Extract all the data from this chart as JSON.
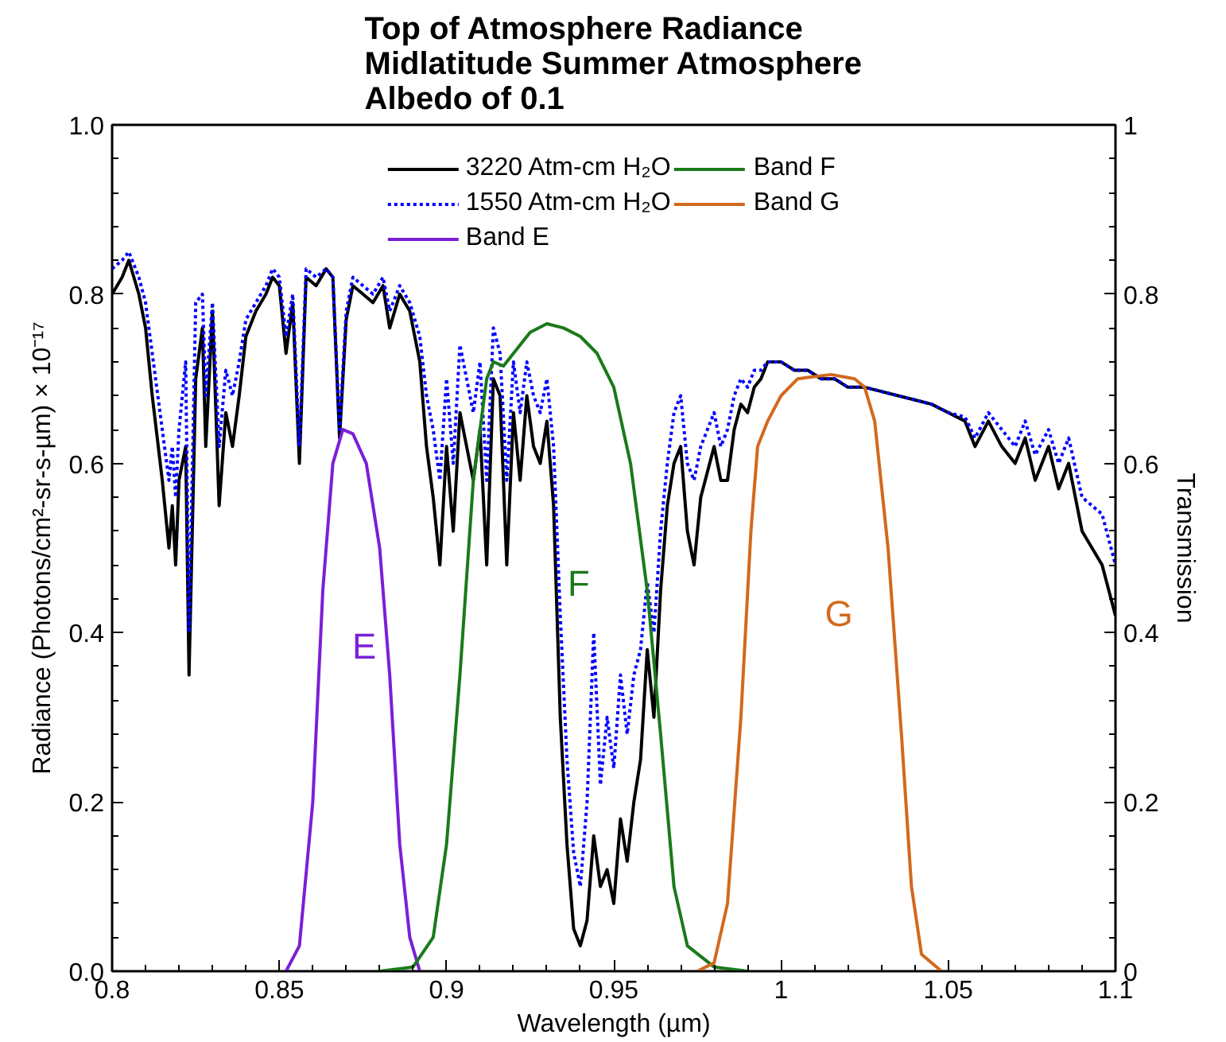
{
  "chart_data": {
    "type": "line",
    "title": "Top of Atmosphere Radiance\nMidlatitude Summer Atmosphere\nAlbedo of 0.1",
    "xlabel": "Wavelength (µm)",
    "ylabel": "Radiance (Photons/cm²-sr-s-µm) × 10⁻¹⁷",
    "y2label": "Transmission",
    "xlim": [
      0.8,
      1.1
    ],
    "xticks": [
      0.8,
      0.85,
      0.9,
      0.95,
      1,
      1.05,
      1.1
    ],
    "ylim": [
      0,
      1
    ],
    "yticks": [
      {
        "value": 0,
        "label": "0.0"
      },
      0.2,
      0.4,
      0.6,
      0.8,
      {
        "value": 1,
        "label": "1.0"
      }
    ],
    "y2lim": [
      0,
      1
    ],
    "y2ticks": [
      0,
      0.2,
      0.4,
      0.6,
      0.8,
      1
    ],
    "grid": false,
    "legend": "top",
    "marker": "none",
    "series": [
      {
        "name": "3220 Atm-cm H₂O",
        "color": "#000000",
        "line_style": "solid",
        "x": [
          0.8,
          0.803,
          0.805,
          0.808,
          0.81,
          0.812,
          0.815,
          0.817,
          0.818,
          0.819,
          0.82,
          0.822,
          0.823,
          0.825,
          0.827,
          0.828,
          0.83,
          0.832,
          0.834,
          0.836,
          0.838,
          0.84,
          0.843,
          0.846,
          0.848,
          0.85,
          0.852,
          0.854,
          0.856,
          0.858,
          0.861,
          0.864,
          0.866,
          0.868,
          0.87,
          0.872,
          0.875,
          0.878,
          0.881,
          0.883,
          0.886,
          0.889,
          0.892,
          0.894,
          0.896,
          0.898,
          0.9,
          0.902,
          0.904,
          0.906,
          0.908,
          0.91,
          0.912,
          0.914,
          0.916,
          0.918,
          0.92,
          0.922,
          0.924,
          0.926,
          0.928,
          0.93,
          0.932,
          0.934,
          0.936,
          0.938,
          0.94,
          0.942,
          0.944,
          0.946,
          0.948,
          0.95,
          0.952,
          0.954,
          0.956,
          0.958,
          0.96,
          0.962,
          0.964,
          0.966,
          0.968,
          0.97,
          0.972,
          0.974,
          0.976,
          0.978,
          0.98,
          0.982,
          0.984,
          0.986,
          0.988,
          0.99,
          0.992,
          0.994,
          0.996,
          1,
          1.004,
          1.008,
          1.012,
          1.016,
          1.02,
          1.025,
          1.03,
          1.035,
          1.04,
          1.045,
          1.05,
          1.055,
          1.058,
          1.062,
          1.066,
          1.07,
          1.073,
          1.076,
          1.08,
          1.083,
          1.086,
          1.09,
          1.093,
          1.096,
          1.1
        ],
        "values": [
          0.8,
          0.82,
          0.84,
          0.8,
          0.76,
          0.68,
          0.58,
          0.5,
          0.55,
          0.48,
          0.58,
          0.62,
          0.35,
          0.7,
          0.76,
          0.62,
          0.78,
          0.55,
          0.66,
          0.62,
          0.68,
          0.75,
          0.78,
          0.8,
          0.82,
          0.81,
          0.73,
          0.79,
          0.6,
          0.82,
          0.81,
          0.83,
          0.82,
          0.63,
          0.77,
          0.81,
          0.8,
          0.79,
          0.81,
          0.76,
          0.8,
          0.78,
          0.72,
          0.62,
          0.56,
          0.48,
          0.62,
          0.52,
          0.66,
          0.62,
          0.58,
          0.64,
          0.48,
          0.7,
          0.68,
          0.48,
          0.66,
          0.58,
          0.68,
          0.62,
          0.6,
          0.65,
          0.55,
          0.3,
          0.15,
          0.05,
          0.03,
          0.06,
          0.16,
          0.1,
          0.12,
          0.08,
          0.18,
          0.13,
          0.2,
          0.25,
          0.38,
          0.3,
          0.45,
          0.55,
          0.6,
          0.62,
          0.52,
          0.48,
          0.56,
          0.59,
          0.62,
          0.58,
          0.58,
          0.64,
          0.67,
          0.66,
          0.69,
          0.7,
          0.72,
          0.72,
          0.71,
          0.71,
          0.7,
          0.7,
          0.69,
          0.69,
          0.685,
          0.68,
          0.675,
          0.67,
          0.66,
          0.65,
          0.62,
          0.65,
          0.62,
          0.6,
          0.63,
          0.58,
          0.62,
          0.57,
          0.6,
          0.52,
          0.5,
          0.48,
          0.42
        ]
      },
      {
        "name": "1550 Atm-cm H₂O",
        "color": "#0000ff",
        "line_style": "dotted",
        "x": [
          0.8,
          0.803,
          0.805,
          0.808,
          0.81,
          0.812,
          0.815,
          0.817,
          0.818,
          0.819,
          0.82,
          0.822,
          0.823,
          0.825,
          0.827,
          0.828,
          0.83,
          0.832,
          0.834,
          0.836,
          0.838,
          0.84,
          0.843,
          0.846,
          0.848,
          0.85,
          0.852,
          0.854,
          0.856,
          0.858,
          0.861,
          0.864,
          0.866,
          0.868,
          0.87,
          0.872,
          0.875,
          0.878,
          0.881,
          0.883,
          0.886,
          0.889,
          0.892,
          0.894,
          0.896,
          0.898,
          0.9,
          0.902,
          0.904,
          0.906,
          0.908,
          0.91,
          0.912,
          0.914,
          0.916,
          0.918,
          0.92,
          0.922,
          0.924,
          0.926,
          0.928,
          0.93,
          0.932,
          0.934,
          0.936,
          0.938,
          0.94,
          0.942,
          0.944,
          0.946,
          0.948,
          0.95,
          0.952,
          0.954,
          0.956,
          0.958,
          0.96,
          0.962,
          0.964,
          0.966,
          0.968,
          0.97,
          0.972,
          0.974,
          0.976,
          0.978,
          0.98,
          0.982,
          0.984,
          0.986,
          0.988,
          0.99,
          0.992,
          0.994,
          0.996,
          1,
          1.004,
          1.008,
          1.012,
          1.016,
          1.02,
          1.025,
          1.03,
          1.035,
          1.04,
          1.045,
          1.05,
          1.055,
          1.058,
          1.062,
          1.066,
          1.07,
          1.073,
          1.076,
          1.08,
          1.083,
          1.086,
          1.09,
          1.093,
          1.096,
          1.1
        ],
        "values": [
          0.83,
          0.84,
          0.85,
          0.82,
          0.79,
          0.73,
          0.64,
          0.58,
          0.62,
          0.56,
          0.64,
          0.72,
          0.4,
          0.79,
          0.8,
          0.68,
          0.79,
          0.62,
          0.71,
          0.68,
          0.72,
          0.77,
          0.79,
          0.81,
          0.83,
          0.82,
          0.75,
          0.8,
          0.62,
          0.83,
          0.82,
          0.83,
          0.82,
          0.64,
          0.78,
          0.82,
          0.81,
          0.8,
          0.82,
          0.78,
          0.81,
          0.79,
          0.75,
          0.68,
          0.64,
          0.58,
          0.7,
          0.6,
          0.74,
          0.7,
          0.66,
          0.72,
          0.58,
          0.76,
          0.73,
          0.58,
          0.72,
          0.66,
          0.72,
          0.68,
          0.66,
          0.7,
          0.62,
          0.42,
          0.25,
          0.14,
          0.1,
          0.2,
          0.4,
          0.22,
          0.3,
          0.24,
          0.35,
          0.28,
          0.35,
          0.38,
          0.46,
          0.4,
          0.52,
          0.6,
          0.66,
          0.68,
          0.6,
          0.58,
          0.62,
          0.64,
          0.66,
          0.62,
          0.64,
          0.68,
          0.7,
          0.69,
          0.71,
          0.71,
          0.72,
          0.72,
          0.71,
          0.71,
          0.7,
          0.7,
          0.69,
          0.69,
          0.685,
          0.68,
          0.675,
          0.67,
          0.66,
          0.655,
          0.63,
          0.66,
          0.64,
          0.62,
          0.65,
          0.61,
          0.64,
          0.6,
          0.63,
          0.56,
          0.55,
          0.54,
          0.48
        ]
      },
      {
        "name": "Band E",
        "color": "#7b1fd6",
        "line_style": "solid",
        "axis": "y2",
        "x": [
          0.852,
          0.856,
          0.86,
          0.863,
          0.866,
          0.869,
          0.872,
          0.876,
          0.88,
          0.883,
          0.886,
          0.889,
          0.892
        ],
        "values": [
          0,
          0.03,
          0.2,
          0.45,
          0.6,
          0.64,
          0.635,
          0.6,
          0.5,
          0.35,
          0.15,
          0.04,
          0
        ]
      },
      {
        "name": "Band F",
        "color": "#1a7a1a",
        "line_style": "solid",
        "axis": "y2",
        "x": [
          0.88,
          0.89,
          0.896,
          0.9,
          0.904,
          0.908,
          0.912,
          0.914,
          0.917,
          0.92,
          0.925,
          0.93,
          0.935,
          0.94,
          0.945,
          0.95,
          0.955,
          0.96,
          0.964,
          0.968,
          0.972,
          0.98,
          0.99
        ],
        "values": [
          0,
          0.005,
          0.04,
          0.15,
          0.35,
          0.58,
          0.7,
          0.72,
          0.715,
          0.73,
          0.755,
          0.765,
          0.76,
          0.75,
          0.73,
          0.69,
          0.6,
          0.45,
          0.28,
          0.1,
          0.03,
          0.005,
          0
        ]
      },
      {
        "name": "Band G",
        "color": "#d2691e",
        "line_style": "solid",
        "axis": "y2",
        "x": [
          0.975,
          0.98,
          0.984,
          0.988,
          0.991,
          0.993,
          0.996,
          1,
          1.005,
          1.015,
          1.022,
          1.025,
          1.028,
          1.032,
          1.036,
          1.039,
          1.042,
          1.048
        ],
        "values": [
          0,
          0.01,
          0.08,
          0.3,
          0.52,
          0.62,
          0.65,
          0.68,
          0.7,
          0.705,
          0.7,
          0.69,
          0.65,
          0.5,
          0.28,
          0.1,
          0.02,
          0
        ]
      }
    ],
    "annotations": [
      "E",
      "F",
      "G"
    ]
  }
}
